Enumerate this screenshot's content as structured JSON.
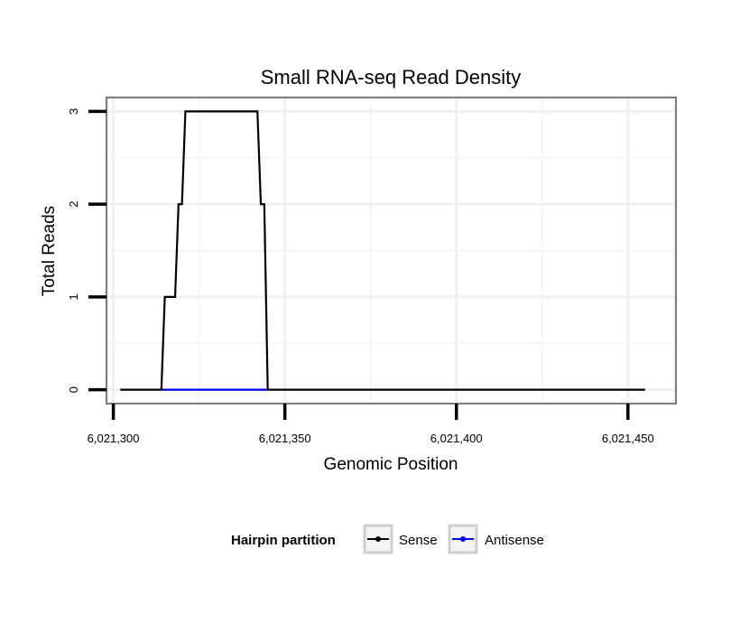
{
  "chart_data": {
    "type": "line",
    "title": "Small RNA-seq Read Density",
    "xlabel": "Genomic Position",
    "ylabel": "Total Reads",
    "xlim": [
      6021298,
      6021464
    ],
    "ylim": [
      -0.15,
      3.15
    ],
    "x_ticks": [
      6021300,
      6021350,
      6021400,
      6021450
    ],
    "x_tick_labels": [
      "6,021,300",
      "6,021,350",
      "6,021,400",
      "6,021,450"
    ],
    "y_ticks": [
      0,
      1,
      2,
      3
    ],
    "y_tick_labels": [
      "0",
      "1",
      "2",
      "3"
    ],
    "grid": true,
    "legend": {
      "title": "Hairpin partition",
      "position": "bottom",
      "entries": [
        "Sense",
        "Antisense"
      ]
    },
    "series": [
      {
        "name": "Sense",
        "color": "#000000",
        "x": [
          6021302,
          6021314,
          6021315,
          6021317,
          6021318,
          6021319,
          6021320,
          6021321,
          6021322,
          6021342,
          6021343,
          6021344,
          6021345,
          6021455
        ],
        "y": [
          0,
          0,
          1,
          1,
          1,
          2,
          2,
          3,
          3,
          3,
          2,
          2,
          0,
          0
        ]
      },
      {
        "name": "Antisense",
        "color": "#0000ff",
        "x": [
          6021314,
          6021345
        ],
        "y": [
          0,
          0
        ]
      }
    ]
  }
}
